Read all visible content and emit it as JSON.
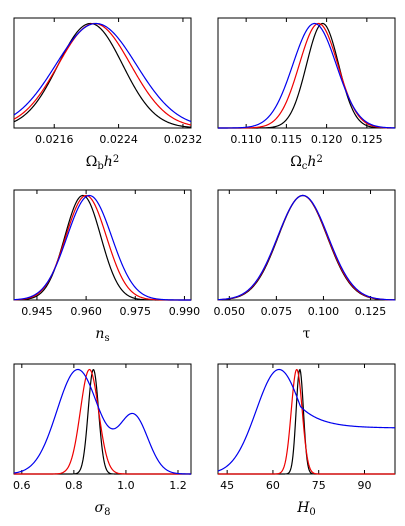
{
  "colors": {
    "black": "#000000",
    "red": "#ee0000",
    "blue": "#0000ee"
  },
  "chart_data": [
    {
      "type": "line",
      "xlabel": "Ωbh2",
      "xlim": [
        0.0211,
        0.0233
      ],
      "xticks": [
        0.0216,
        0.0224,
        0.0232
      ],
      "xtick_labels": [
        "0.0216",
        "0.0224",
        "0.0232"
      ],
      "series": [
        {
          "color": "black",
          "gauss": [
            [
              0.02205,
              0.0004,
              1.0
            ]
          ]
        },
        {
          "color": "red",
          "gauss": [
            [
              0.0221,
              0.00045,
              1.0
            ]
          ]
        },
        {
          "color": "blue",
          "gauss": [
            [
              0.02212,
              0.0005,
              1.0
            ]
          ]
        }
      ]
    },
    {
      "type": "line",
      "xlabel": "Ωch2",
      "xlim": [
        0.1065,
        0.1285
      ],
      "xticks": [
        0.11,
        0.115,
        0.12,
        0.125
      ],
      "xtick_labels": [
        "0.110",
        "0.115",
        "0.120",
        "0.125"
      ],
      "series": [
        {
          "color": "black",
          "gauss": [
            [
              0.1195,
              0.002,
              1.0
            ]
          ]
        },
        {
          "color": "red",
          "gauss": [
            [
              0.119,
              0.0024,
              1.0
            ]
          ]
        },
        {
          "color": "blue",
          "gauss": [
            [
              0.1185,
              0.0027,
              1.0
            ]
          ]
        }
      ]
    },
    {
      "type": "line",
      "xlabel": "ns",
      "xlim": [
        0.938,
        0.992
      ],
      "xticks": [
        0.945,
        0.96,
        0.975,
        0.99
      ],
      "xtick_labels": [
        "0.945",
        "0.960",
        "0.975",
        "0.990"
      ],
      "series": [
        {
          "color": "black",
          "gauss": [
            [
              0.959,
              0.0055,
              1.0
            ]
          ]
        },
        {
          "color": "red",
          "gauss": [
            [
              0.96,
              0.0062,
              1.0
            ]
          ]
        },
        {
          "color": "blue",
          "gauss": [
            [
              0.961,
              0.0068,
              1.0
            ]
          ]
        }
      ]
    },
    {
      "type": "line",
      "xlabel": "τ",
      "xlim": [
        0.044,
        0.138
      ],
      "xticks": [
        0.05,
        0.075,
        0.1,
        0.125
      ],
      "xtick_labels": [
        "0.050",
        "0.075",
        "0.100",
        "0.125"
      ],
      "series": [
        {
          "color": "black",
          "gauss": [
            [
              0.089,
              0.013,
              1.0
            ]
          ]
        },
        {
          "color": "red",
          "gauss": [
            [
              0.089,
              0.0132,
              1.0
            ]
          ]
        },
        {
          "color": "blue",
          "gauss": [
            [
              0.0891,
              0.0134,
              1.0
            ]
          ]
        }
      ]
    },
    {
      "type": "line",
      "xlabel": "σ8",
      "xlim": [
        0.57,
        1.25
      ],
      "xticks": [
        0.6,
        0.8,
        1.0,
        1.2
      ],
      "xtick_labels": [
        "0.6",
        "0.8",
        "1.0",
        "1.2"
      ],
      "series": [
        {
          "color": "black",
          "gauss": [
            [
              0.875,
              0.02,
              1.0
            ]
          ]
        },
        {
          "color": "red",
          "gauss": [
            [
              0.86,
              0.035,
              1.0
            ]
          ]
        },
        {
          "color": "blue",
          "gauss": [
            [
              0.815,
              0.08,
              1.0
            ],
            [
              1.03,
              0.055,
              0.55
            ]
          ]
        }
      ]
    },
    {
      "type": "line",
      "xlabel": "H0",
      "xlim": [
        42,
        100
      ],
      "xticks": [
        45,
        60,
        75,
        90
      ],
      "xtick_labels": [
        "45",
        "60",
        "75",
        "90"
      ],
      "series": [
        {
          "color": "black",
          "gauss": [
            [
              68.8,
              1.2,
              1.0
            ]
          ]
        },
        {
          "color": "red",
          "gauss": [
            [
              67.8,
              1.8,
              1.0
            ]
          ]
        },
        {
          "color": "blue",
          "gauss": [
            [
              62.0,
              7.5,
              1.0
            ]
          ],
          "tail": {
            "from": 62.0,
            "level": 0.44,
            "rate": 7.0
          }
        }
      ]
    }
  ]
}
